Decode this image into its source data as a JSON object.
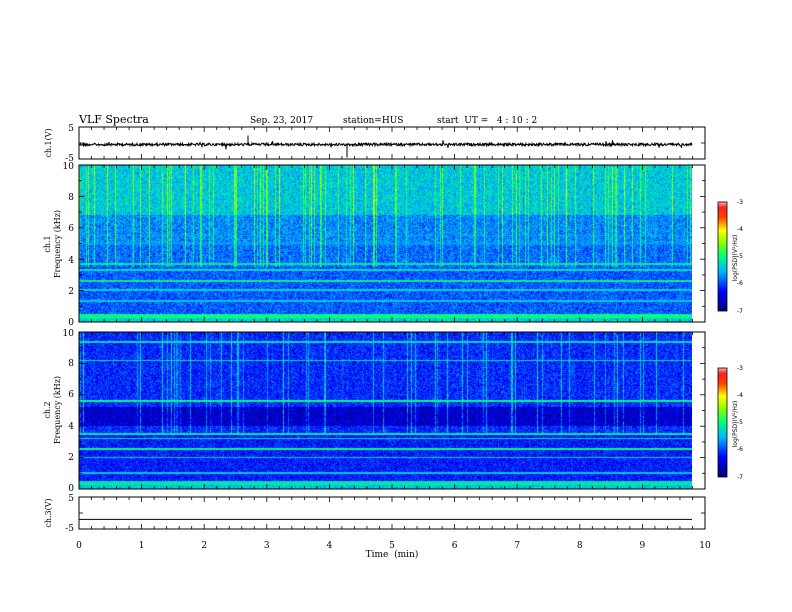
{
  "header": {
    "title": "VLF Spectra",
    "date": "Sep. 23, 2017",
    "station": "station=HUS",
    "start": "start  UT =   4 : 10 : 2"
  },
  "chart_data": [
    {
      "type": "line",
      "ylabel": "ch.1(V)",
      "ylim": [
        -5,
        5
      ],
      "yticks": [
        "5",
        "-5"
      ],
      "xlim": [
        0,
        10
      ],
      "baseline": 0
    },
    {
      "type": "heatmap",
      "ylabel": "Frequency (kHz)",
      "ylabel_top": "ch.1",
      "ylim": [
        0,
        10
      ],
      "yticks": [
        "0",
        "2",
        "4",
        "6",
        "8",
        "10"
      ],
      "colorbar": {
        "label": "log(PSD)(V²/Hz)",
        "range": [
          -7,
          -3
        ],
        "ticks": [
          "-3",
          "-4",
          "-5",
          "-6",
          "-7"
        ]
      }
    },
    {
      "type": "heatmap",
      "ylabel": "Frequency (kHz)",
      "ylabel_top": "ch.2",
      "ylim": [
        0,
        10
      ],
      "yticks": [
        "0",
        "2",
        "4",
        "6",
        "8",
        "10"
      ],
      "colorbar": {
        "label": "log(PSD)(V²/Hz)",
        "range": [
          -7,
          -3
        ],
        "ticks": [
          "-3",
          "-4",
          "-5",
          "-6",
          "-7"
        ]
      }
    },
    {
      "type": "line",
      "ylabel": "ch.3(V)",
      "ylim": [
        -5,
        5
      ],
      "yticks": [
        "5",
        "-5"
      ],
      "xlim": [
        0,
        10
      ],
      "baseline": -2
    }
  ],
  "xaxis": {
    "label": "Time  (min)",
    "ticks": [
      "0",
      "1",
      "2",
      "3",
      "4",
      "5",
      "6",
      "7",
      "8",
      "9",
      "10"
    ],
    "range": [
      0,
      10
    ]
  }
}
